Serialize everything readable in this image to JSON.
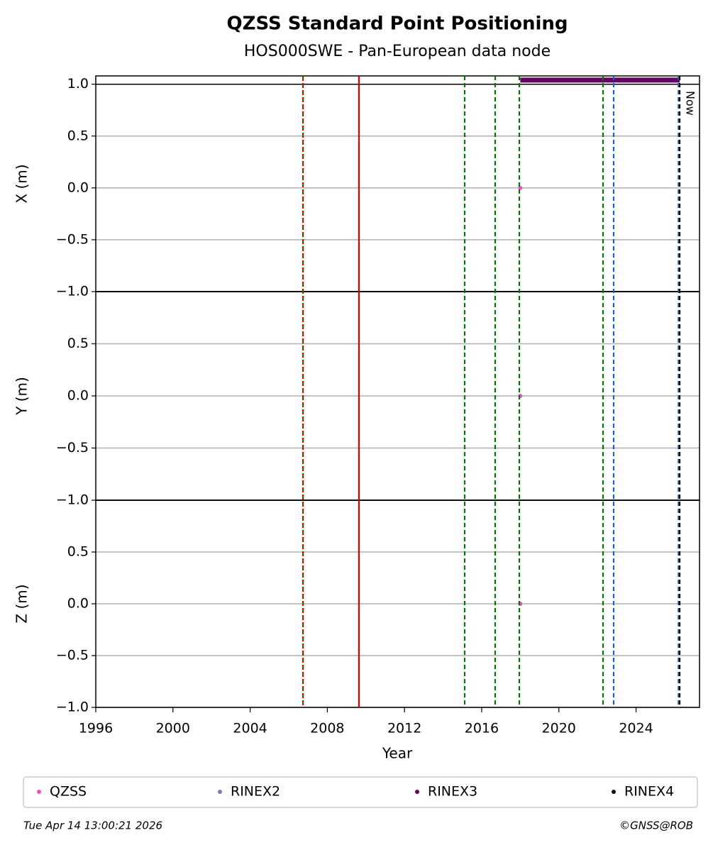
{
  "chart_data": {
    "type": "line",
    "title": "QZSS Standard Point Positioning",
    "subtitle": "HOS000SWE - Pan-European data node",
    "xlabel": "Year",
    "xlim": [
      1996,
      2027.29
    ],
    "xticks": [
      1996,
      2000,
      2004,
      2008,
      2012,
      2016,
      2020,
      2024
    ],
    "grid": true,
    "hline": 1.0,
    "panels": [
      {
        "ylabel": "X (m)",
        "ylim": [
          -1,
          1.08
        ],
        "yticks": [
          {
            "value": -1,
            "label": "−1.0"
          },
          {
            "value": -0.5,
            "label": "−0.5"
          },
          {
            "value": 0,
            "label": "0.0"
          },
          0.5,
          {
            "value": 1,
            "label": "1.0"
          }
        ]
      },
      {
        "ylabel": "Y (m)",
        "ylim": [
          -1,
          1
        ],
        "yticks": [
          {
            "value": -1,
            "label": "−1.0"
          },
          {
            "value": -0.5,
            "label": "−0.5"
          },
          {
            "value": 0,
            "label": "0.0"
          },
          0.5
        ]
      },
      {
        "ylabel": "Z (m)",
        "ylim": [
          -1,
          1
        ],
        "yticks": [
          {
            "value": -1,
            "label": "−1.0"
          },
          {
            "value": -0.5,
            "label": "−0.5"
          },
          {
            "value": 0,
            "label": "0.0"
          },
          0.5
        ]
      }
    ],
    "series": [
      {
        "name": "QZSS",
        "color": "#ee4fc6",
        "x": [
          2018.0
        ],
        "values": [
          [
            0
          ],
          [
            0
          ],
          [
            0
          ]
        ]
      },
      {
        "name": "RINEX2",
        "color": "#7a7ac4",
        "x": [],
        "values": [
          [],
          [],
          []
        ]
      },
      {
        "name": "RINEX3",
        "color": "#660066",
        "x": [
          2018.0,
          2026.26
        ],
        "values": [
          [
            1.04,
            1.04
          ],
          [],
          []
        ]
      },
      {
        "name": "RINEX4",
        "color": "#1a0a1a",
        "x": [],
        "values": [
          [],
          [],
          []
        ]
      }
    ],
    "vlines": [
      {
        "x": 2006.74,
        "color": "#007700",
        "dash": "dashed"
      },
      {
        "x": 2006.74,
        "color": "#dd0000",
        "dash": "dotted"
      },
      {
        "x": 2009.64,
        "color": "#dd0000",
        "dash": "solid"
      },
      {
        "x": 2015.12,
        "color": "#007700",
        "dash": "dashed"
      },
      {
        "x": 2016.7,
        "color": "#007700",
        "dash": "dashed"
      },
      {
        "x": 2017.95,
        "color": "#007700",
        "dash": "dashed"
      },
      {
        "x": 2022.29,
        "color": "#007700",
        "dash": "dashed"
      },
      {
        "x": 2022.84,
        "color": "#1f5fbf",
        "dash": "dashed"
      },
      {
        "x": 2026.2,
        "color": "#1f5fbf",
        "dash": "dashed"
      },
      {
        "x": 2026.26,
        "color": "#000000",
        "dash": "dashed"
      }
    ],
    "annotation": {
      "text": "Now",
      "x": 2026.26
    },
    "footer_left": "Tue Apr 14 13:00:21 2026",
    "footer_right": "©GNSS@ROB"
  }
}
